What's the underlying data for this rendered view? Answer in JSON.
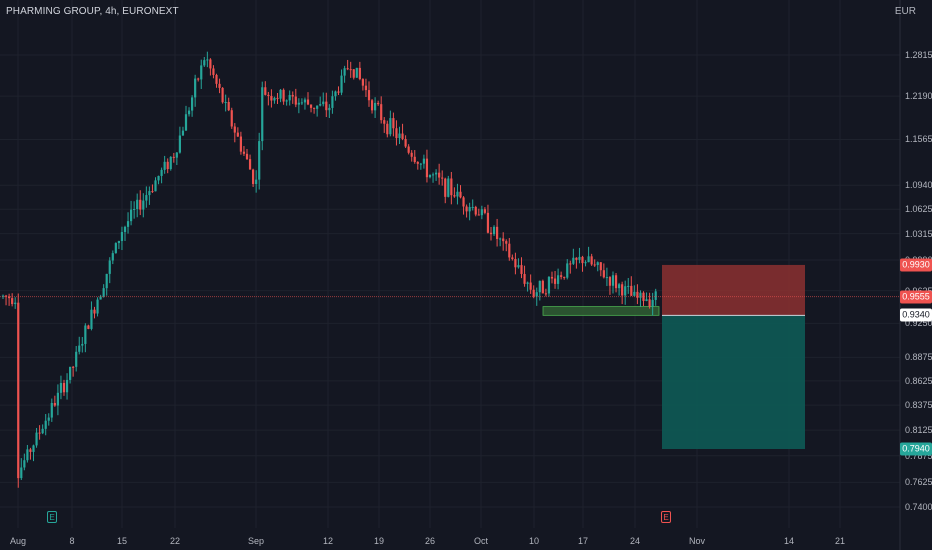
{
  "header": {
    "title": "PHARMING GROUP, 4h, EURONEXT",
    "currency": "EUR"
  },
  "colors": {
    "background": "#141722",
    "up": "#26a69a",
    "down": "#ef5350",
    "stop_zone": "#8b3030",
    "target_zone": "#0d5a55",
    "support_zone": "#2d5a32",
    "grid": "#1e222d"
  },
  "price_axis": {
    "labels": [
      "1.2815",
      "1.2190",
      "1.1565",
      "1.0940",
      "1.0625",
      "1.0315",
      "0.9990",
      "0.9625",
      "0.9250",
      "0.8875",
      "0.8625",
      "0.8375",
      "0.8125",
      "0.7875",
      "0.7625",
      "0.7400"
    ]
  },
  "price_tags": [
    {
      "name": "stop-price-tag",
      "text": "0.9930",
      "bg": "#ef5350",
      "fg": "#ffffff"
    },
    {
      "name": "current-price-tag",
      "text": "0.9555",
      "bg": "#ef5350",
      "fg": "#ffffff"
    },
    {
      "name": "entry-price-tag",
      "text": "0.9340",
      "bg": "#ffffff",
      "fg": "#131722"
    },
    {
      "name": "target-price-tag",
      "text": "0.7940",
      "bg": "#26a69a",
      "fg": "#ffffff"
    }
  ],
  "time_axis": {
    "labels": [
      "Aug",
      "8",
      "15",
      "22",
      "Sep",
      "12",
      "19",
      "26",
      "Oct",
      "10",
      "17",
      "24",
      "Nov",
      "14",
      "21"
    ]
  },
  "events": [
    {
      "name": "earnings-marker-aug",
      "letter": "E",
      "color": "#26a69a"
    },
    {
      "name": "earnings-marker-oct",
      "letter": "E",
      "color": "#ef5350"
    }
  ],
  "chart_data": {
    "type": "candlestick",
    "timeframe": "4h",
    "y_scale": "log",
    "ylim": [
      0.74,
      1.2815
    ],
    "x_range": [
      "Aug",
      "Nov"
    ],
    "close_trajectory": [
      {
        "x": "Aug",
        "y": 0.771
      },
      {
        "x": "8",
        "y": 0.875
      },
      {
        "x": "15",
        "y": 1.036
      },
      {
        "x": "22",
        "y": 1.139
      },
      {
        "x": "26-Aug",
        "y": 1.28
      },
      {
        "x": "Sep",
        "y": 1.095
      },
      {
        "x": "5-Sep",
        "y": 1.225
      },
      {
        "x": "12",
        "y": 1.2
      },
      {
        "x": "14-Sep",
        "y": 1.27
      },
      {
        "x": "19",
        "y": 1.193
      },
      {
        "x": "26",
        "y": 1.108
      },
      {
        "x": "Oct",
        "y": 1.057
      },
      {
        "x": "10",
        "y": 0.96
      },
      {
        "x": "17",
        "y": 1.001
      },
      {
        "x": "24",
        "y": 0.953
      },
      {
        "x": "last",
        "y": 0.9555
      }
    ],
    "position": {
      "stop": 0.993,
      "entry": 0.934,
      "target": 0.794
    },
    "support_zone": [
      0.934,
      0.944
    ]
  }
}
